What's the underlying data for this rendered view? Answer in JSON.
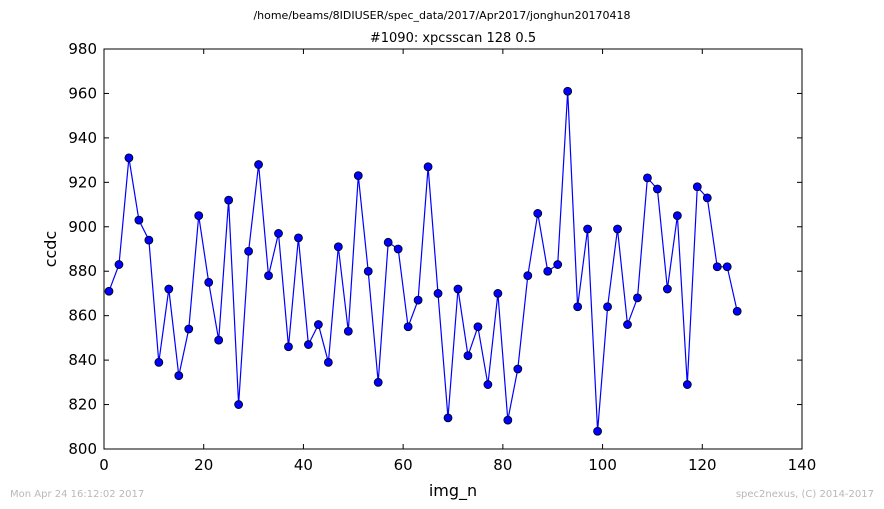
{
  "chart_data": {
    "type": "line",
    "supertitle": "/home/beams/8IDIUSER/spec_data/2017/Apr2017/jonghun20170418",
    "title": "#1090: xpcsscan 128 0.5",
    "xlabel": "img_n",
    "ylabel": "ccdc",
    "xlim": [
      0,
      140
    ],
    "ylim": [
      800,
      980
    ],
    "xticks": [
      0,
      20,
      40,
      60,
      80,
      100,
      120,
      140
    ],
    "yticks": [
      800,
      820,
      840,
      860,
      880,
      900,
      920,
      940,
      960,
      980
    ],
    "grid": false,
    "series": [
      {
        "color": "#0000ff",
        "marker": "circle",
        "x": [
          1,
          3,
          5,
          7,
          9,
          11,
          13,
          15,
          17,
          19,
          21,
          23,
          25,
          27,
          29,
          31,
          33,
          35,
          37,
          39,
          41,
          43,
          45,
          47,
          49,
          51,
          53,
          55,
          57,
          59,
          61,
          63,
          65,
          67,
          69,
          71,
          73,
          75,
          77,
          79,
          81,
          83,
          85,
          87,
          89,
          91,
          93,
          95,
          97,
          99,
          101,
          103,
          105,
          107,
          109,
          111,
          113,
          115,
          117,
          119,
          121,
          123,
          125,
          127
        ],
        "y": [
          871,
          883,
          931,
          903,
          894,
          839,
          872,
          833,
          854,
          905,
          875,
          849,
          912,
          820,
          889,
          928,
          878,
          897,
          846,
          895,
          847,
          856,
          839,
          891,
          853,
          923,
          880,
          830,
          893,
          890,
          855,
          867,
          927,
          870,
          814,
          872,
          842,
          855,
          829,
          870,
          813,
          836,
          878,
          906,
          880,
          883,
          961,
          864,
          899,
          808,
          864,
          899,
          856,
          868,
          922,
          917,
          872,
          905,
          829,
          918,
          913,
          882,
          882,
          862
        ]
      }
    ]
  },
  "footer": {
    "left": "Mon Apr 24 16:12:02 2017",
    "right": "spec2nexus, (C) 2014-2017"
  }
}
